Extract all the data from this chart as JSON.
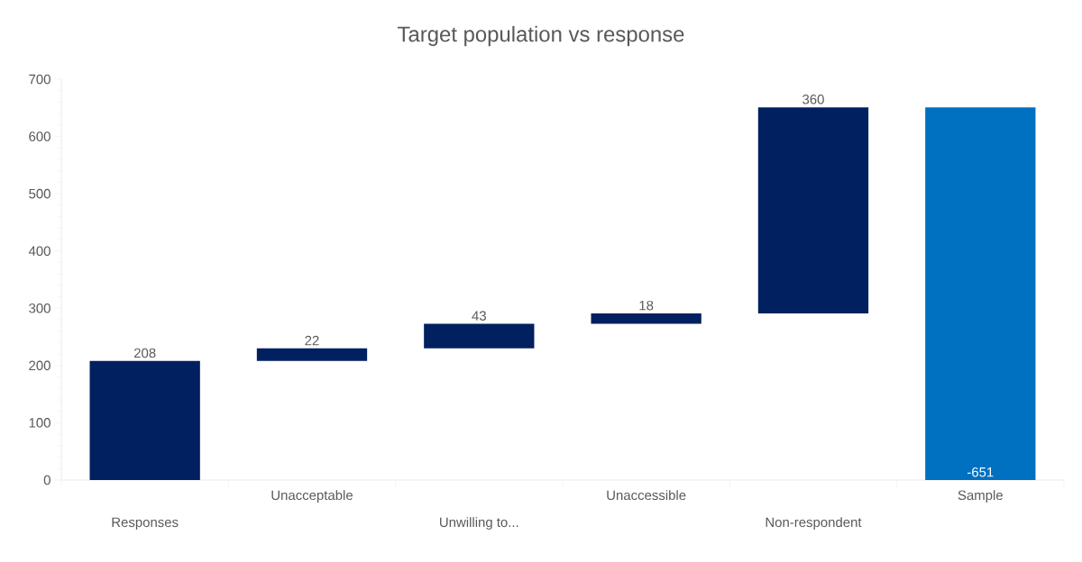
{
  "chart_data": {
    "type": "bar",
    "title": "Target population vs response",
    "categories": [
      "Responses",
      "Unacceptable",
      "Unwilling to...",
      "Unaccessible",
      "Non-respondent",
      "Sample"
    ],
    "values": [
      208,
      22,
      43,
      18,
      360,
      -651
    ],
    "base": [
      0,
      208,
      230,
      273,
      291,
      651
    ],
    "colors": [
      "#002060",
      "#002060",
      "#002060",
      "#002060",
      "#002060",
      "#0070c0"
    ],
    "value_labels": [
      "208",
      "22",
      "43",
      "18",
      "360",
      "-651"
    ],
    "ylim": [
      0,
      700
    ],
    "yticks": [
      0,
      100,
      200,
      300,
      400,
      500,
      600,
      700
    ],
    "grid": false
  }
}
